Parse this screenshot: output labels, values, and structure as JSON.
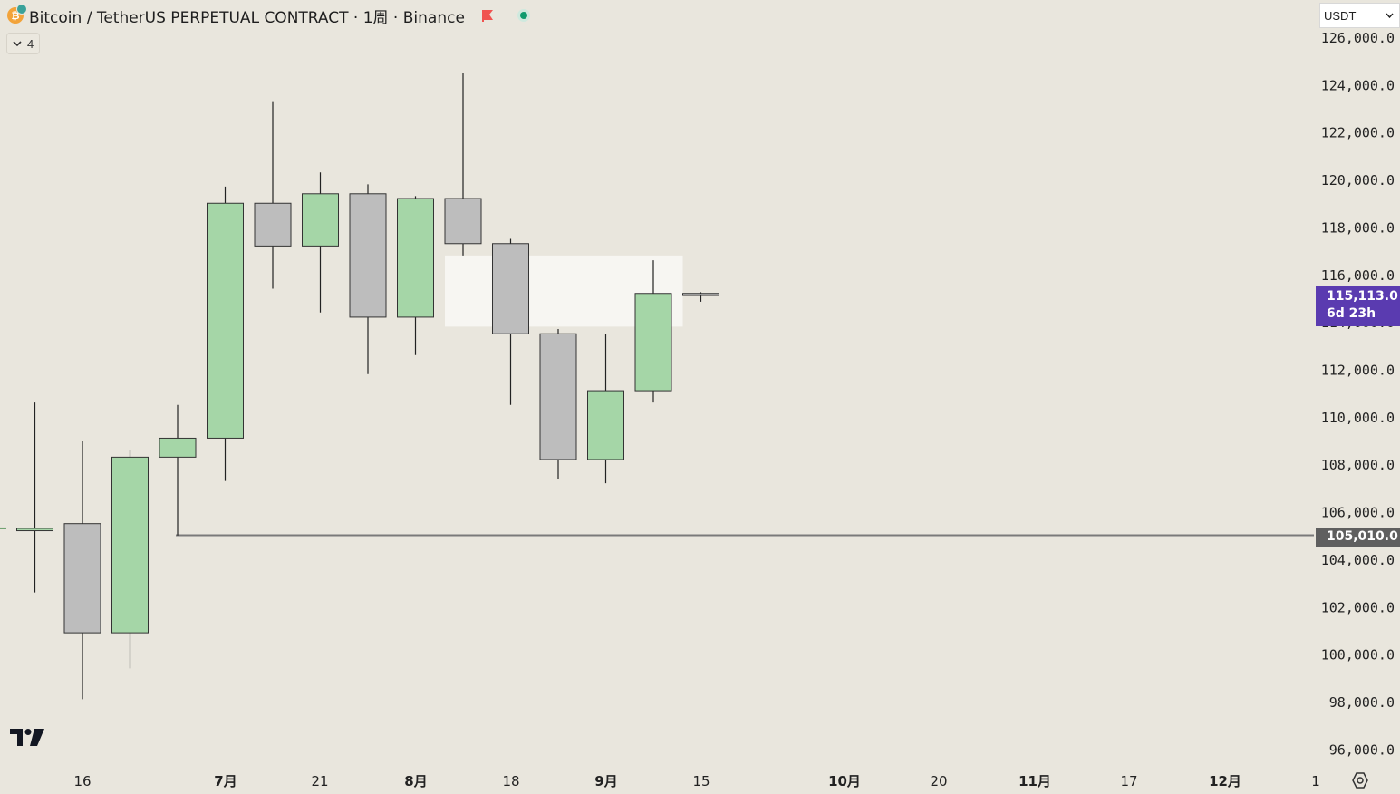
{
  "header": {
    "title": "Bitcoin / TetherUS PERPETUAL CONTRACT · 1周 · Binance",
    "indicator_count": "4",
    "currency": "USDT",
    "icons": [
      "bitcoin-coin-icon",
      "red-flag-icon",
      "market-status-icon",
      "chevron-down-icon",
      "tradingview-logo",
      "settings-icon"
    ]
  },
  "colors": {
    "up": "#a5d6a7",
    "down": "#bdbdbd",
    "current_tag": "#5a3bb0",
    "level_tag": "#5f5f5f"
  },
  "chart_data": {
    "type": "candlestick",
    "timeframe": "1周",
    "ylim": [
      95500,
      126400
    ],
    "y_ticks": [
      "96,000.0",
      "98,000.0",
      "100,000.0",
      "102,000.0",
      "104,000.0",
      "106,000.0",
      "108,000.0",
      "110,000.0",
      "112,000.0",
      "114,000.0",
      "116,000.0",
      "118,000.0",
      "120,000.0",
      "122,000.0",
      "124,000.0",
      "126,000.0"
    ],
    "x_ticks": [
      "16",
      "7月",
      "21",
      "8月",
      "18",
      "9月",
      "15",
      "10月",
      "20",
      "11月",
      "17",
      "12月",
      "1"
    ],
    "candles": [
      {
        "o": 105200,
        "h": 110600,
        "l": 102600,
        "c": 105300
      },
      {
        "o": 105500,
        "h": 109000,
        "l": 98100,
        "c": 100900
      },
      {
        "o": 100900,
        "h": 108600,
        "l": 99400,
        "c": 108300
      },
      {
        "o": 108300,
        "h": 110500,
        "l": 105000,
        "c": 109100
      },
      {
        "o": 109100,
        "h": 119700,
        "l": 107300,
        "c": 119000
      },
      {
        "o": 119000,
        "h": 123300,
        "l": 115400,
        "c": 117200
      },
      {
        "o": 117200,
        "h": 120300,
        "l": 114400,
        "c": 119400
      },
      {
        "o": 119400,
        "h": 119800,
        "l": 111800,
        "c": 114200
      },
      {
        "o": 114200,
        "h": 119300,
        "l": 112600,
        "c": 119200
      },
      {
        "o": 119200,
        "h": 124500,
        "l": 116800,
        "c": 117300
      },
      {
        "o": 117300,
        "h": 117500,
        "l": 110500,
        "c": 113500
      },
      {
        "o": 113500,
        "h": 113700,
        "l": 107400,
        "c": 108200
      },
      {
        "o": 108200,
        "h": 113500,
        "l": 107200,
        "c": 111100
      },
      {
        "o": 111100,
        "h": 116600,
        "l": 110600,
        "c": 115200
      },
      {
        "o": 115200,
        "h": 115250,
        "l": 114850,
        "c": 115113
      }
    ],
    "highlight_zone": {
      "from_price": 113800,
      "to_price": 116800
    },
    "horizontal_level": 105010,
    "current_price": "115,113.0",
    "countdown": "6d 23h",
    "level_label": "105,010.0"
  }
}
